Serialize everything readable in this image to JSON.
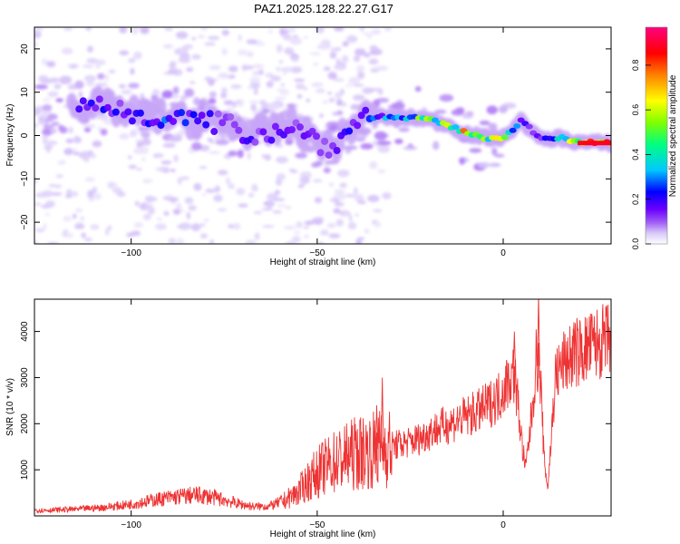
{
  "figure": {
    "title": "PAZ1.2025.128.22.27.G17"
  },
  "chart_data": [
    {
      "type": "heatmap",
      "name": "spectrogram",
      "xlabel": "Height of straight line (km)",
      "ylabel": "Frequency (Hz)",
      "xlim": [
        -126,
        29
      ],
      "ylim": [
        -25,
        25
      ],
      "x_ticks": [
        -100,
        -50,
        0
      ],
      "y_ticks": [
        20,
        10,
        0,
        -10,
        -20
      ],
      "colorbar": {
        "label": "Normalized spectral amplitude",
        "range": [
          0,
          0.97
        ],
        "ticks": [
          0.0,
          0.2,
          0.4,
          0.6,
          0.8
        ],
        "colormap": [
          "#ffffff",
          "#d8c8f8",
          "#9f5cf5",
          "#6a00ff",
          "#0000ff",
          "#00c8ff",
          "#00ff80",
          "#80ff00",
          "#ffff00",
          "#ff8000",
          "#ff0000",
          "#ff0080"
        ]
      },
      "ridge": {
        "points": [
          {
            "h": -108,
            "f": 7,
            "a": 0.35
          },
          {
            "h": -100,
            "f": 5,
            "a": 0.3
          },
          {
            "h": -92,
            "f": 4.5,
            "a": 0.4
          },
          {
            "h": -85,
            "f": 3.5,
            "a": 0.35
          },
          {
            "h": -78,
            "f": 3,
            "a": 0.3
          },
          {
            "h": -65,
            "f": 0,
            "a": 0.3
          },
          {
            "h": -58,
            "f": 2.5,
            "a": 0.3
          },
          {
            "h": -50,
            "f": -1,
            "a": 0.28
          },
          {
            "h": -46,
            "f": -3,
            "a": 0.3
          },
          {
            "h": -38,
            "f": 4.5,
            "a": 0.35
          },
          {
            "h": -30,
            "f": 4.2,
            "a": 0.45
          },
          {
            "h": -22,
            "f": 4,
            "a": 0.65
          },
          {
            "h": -15,
            "f": 2.5,
            "a": 0.7
          },
          {
            "h": -10,
            "f": 0.5,
            "a": 0.8
          },
          {
            "h": -5,
            "f": -0.5,
            "a": 0.75
          },
          {
            "h": 0,
            "f": -0.5,
            "a": 0.7
          },
          {
            "h": 5,
            "f": 3.5,
            "a": 0.3
          },
          {
            "h": 10,
            "f": -1,
            "a": 0.35
          },
          {
            "h": 15,
            "f": -0.5,
            "a": 0.55
          },
          {
            "h": 20,
            "f": -1.5,
            "a": 0.75
          },
          {
            "h": 29,
            "f": -1.8,
            "a": 0.97
          }
        ]
      }
    },
    {
      "type": "line",
      "name": "snr",
      "xlabel": "Height of straight line (km)",
      "ylabel": "SNR (10 * v/v)",
      "xlim": [
        -126,
        29
      ],
      "ylim": [
        0,
        4700
      ],
      "x_ticks": [
        -100,
        -50,
        0
      ],
      "y_ticks": [
        1000,
        2000,
        3000,
        4000
      ],
      "line_color": "#ee3333",
      "series": [
        {
          "x": [
            -126,
            -120,
            -114,
            -108,
            -102,
            -97,
            -92,
            -87,
            -83,
            -79,
            -75,
            -71,
            -67,
            -63,
            -59,
            -55,
            -52,
            -49,
            -46,
            -43,
            -40,
            -37,
            -34,
            -31,
            -28,
            -25,
            -22,
            -19,
            -16,
            -13,
            -10,
            -7,
            -4,
            -1,
            1,
            3,
            4,
            5,
            6,
            7,
            8,
            9,
            10,
            11,
            12,
            14,
            16,
            18,
            20,
            22,
            24,
            26,
            29
          ],
          "y": [
            120,
            130,
            150,
            180,
            230,
            300,
            370,
            420,
            450,
            420,
            350,
            260,
            200,
            210,
            320,
            520,
            800,
            1000,
            1150,
            1250,
            1350,
            1400,
            1450,
            1500,
            1550,
            1600,
            1700,
            1850,
            1950,
            2050,
            2150,
            2250,
            2400,
            2600,
            2900,
            3100,
            2400,
            1600,
            1000,
            1700,
            2500,
            3500,
            3000,
            1200,
            600,
            3000,
            3300,
            3450,
            3550,
            3600,
            3700,
            3750,
            3850
          ]
        }
      ],
      "annotations": [
        {
          "x": -32.5,
          "y": 3000
        },
        {
          "x": -34,
          "y": 2400
        },
        {
          "x": 3,
          "y": 4000
        },
        {
          "x": 9.5,
          "y": 4800
        },
        {
          "x": 19,
          "y": 4200
        }
      ]
    }
  ]
}
